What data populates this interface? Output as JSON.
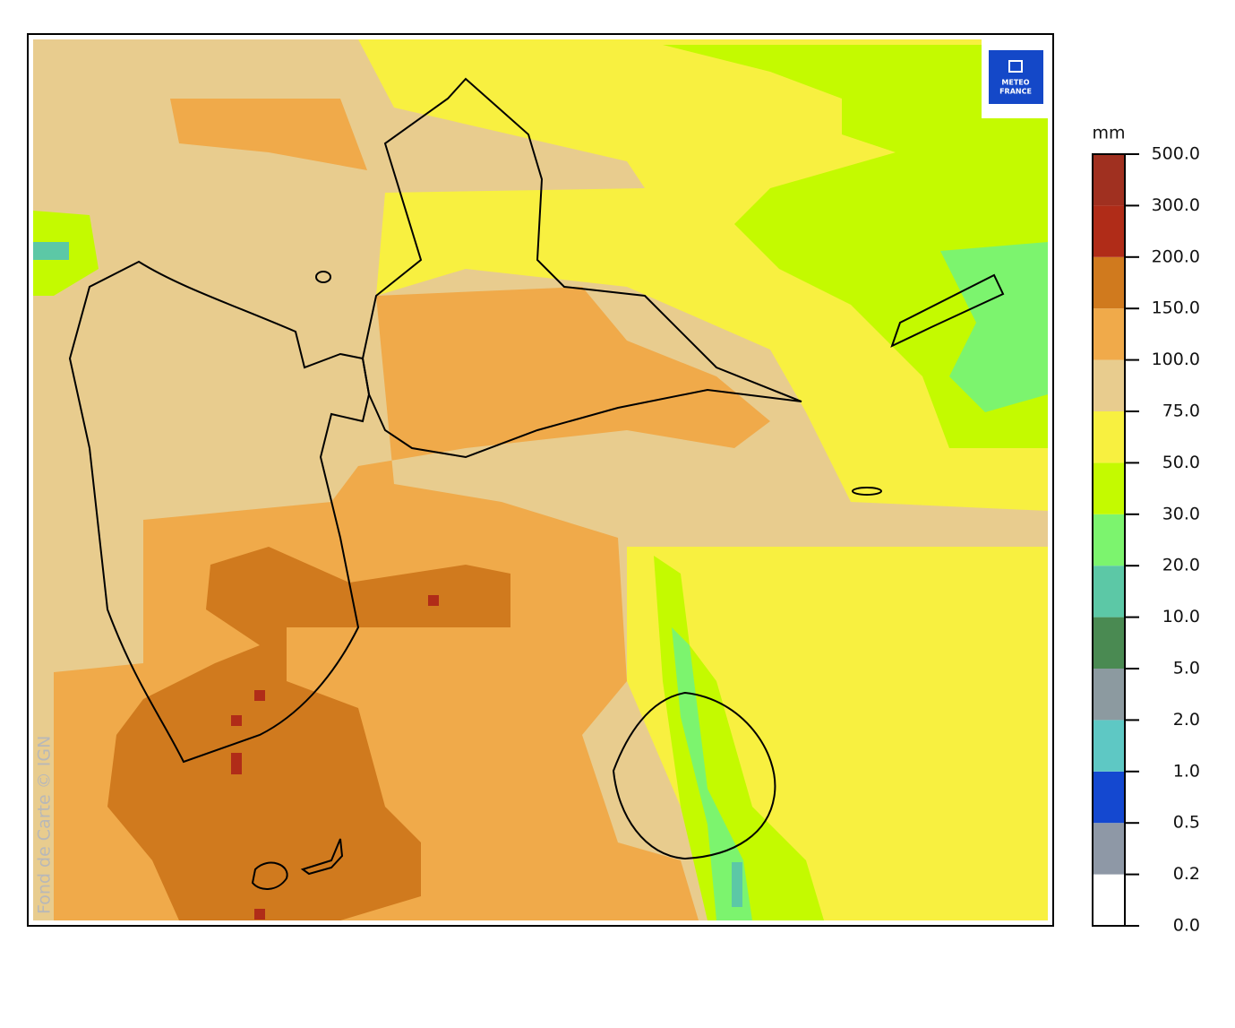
{
  "map": {
    "logo": [
      "METEO",
      "FRANCE"
    ],
    "credit": "Fond de Carte © IGN",
    "legend": {
      "unit": "mm",
      "colors": [
        "#ffffff",
        "#8e98a6",
        "#1448d0",
        "#5ec8c4",
        "#8c9aa0",
        "#4a8a52",
        "#5cc8a6",
        "#7cf46e",
        "#c4fa00",
        "#f8f040",
        "#e8cc8e",
        "#f0aa4a",
        "#d07a1e",
        "#b02c18",
        "#a03020"
      ],
      "ticks": [
        {
          "value": 0,
          "label": "0.0"
        },
        {
          "value": 0.2,
          "label": "0.2"
        },
        {
          "value": 0.5,
          "label": "0.5"
        },
        {
          "value": 1,
          "label": "1.0"
        },
        {
          "value": 2,
          "label": "2.0"
        },
        {
          "value": 5,
          "label": "5.0"
        },
        {
          "value": 10,
          "label": "10.0"
        },
        {
          "value": 20,
          "label": "20.0"
        },
        {
          "value": 30,
          "label": "30.0"
        },
        {
          "value": 50,
          "label": "50.0"
        },
        {
          "value": 75,
          "label": "75.0"
        },
        {
          "value": 100,
          "label": "100.0"
        },
        {
          "value": 150,
          "label": "150.0"
        },
        {
          "value": 200,
          "label": "200.0"
        },
        {
          "value": 300,
          "label": "300.0"
        },
        {
          "value": 500,
          "label": "500.0"
        }
      ]
    }
  }
}
